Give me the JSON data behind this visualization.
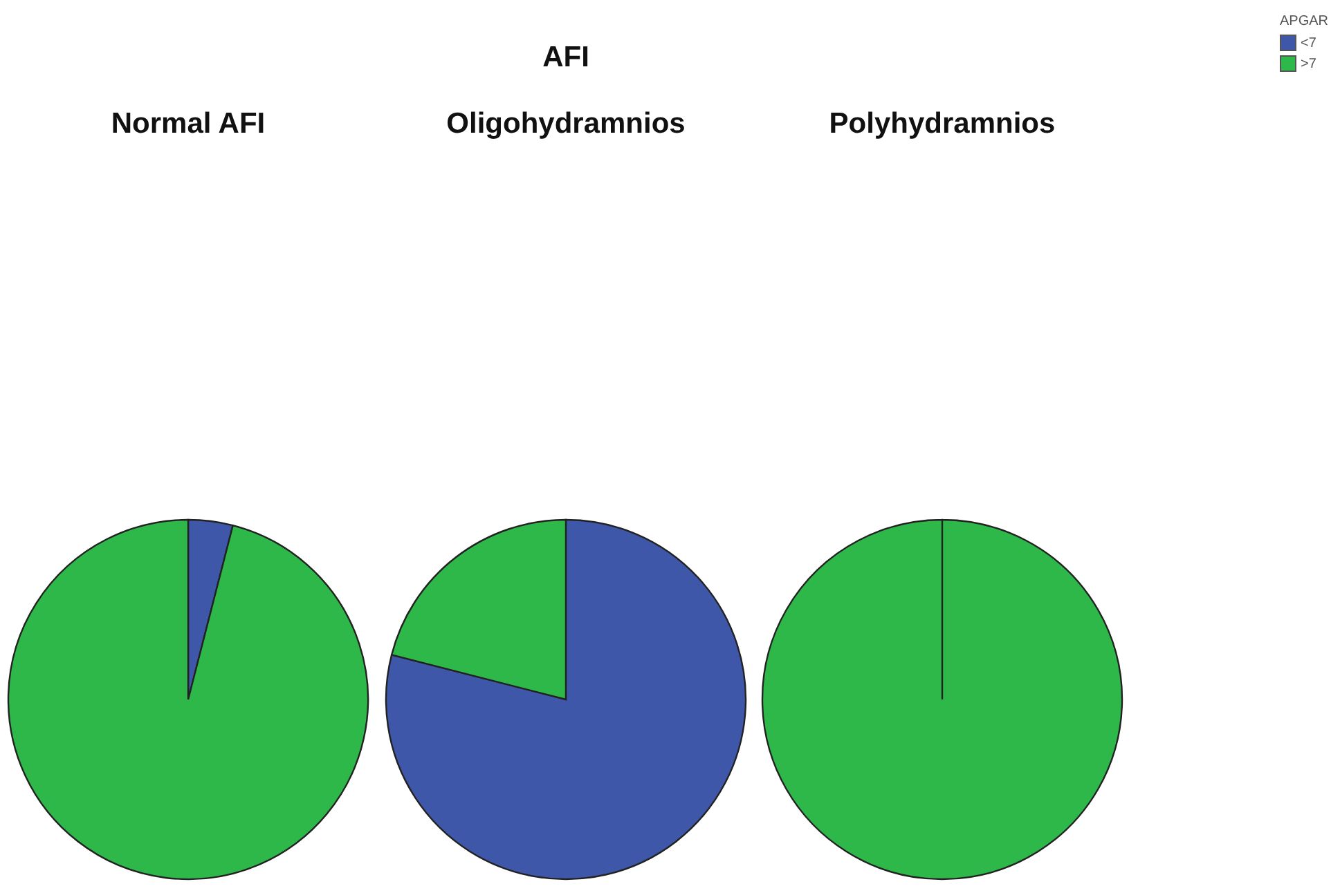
{
  "chart_data": [
    {
      "type": "pie",
      "title": "Normal AFI",
      "categories": [
        null,
        null
      ],
      "values": [
        4,
        96
      ],
      "colors": [
        "#3f57a8",
        "#2fb84a"
      ]
    },
    {
      "type": "pie",
      "title": "Oligohydramnios",
      "annotations": [
        "AFI"
      ],
      "categories": [
        null,
        null
      ],
      "values": [
        79,
        21
      ],
      "colors": [
        "#3f57a8",
        "#2fb84a"
      ]
    },
    {
      "type": "pie",
      "title": "Polyhydramnios",
      "categories": [
        "<7",
        ">7"
      ],
      "values": [
        0,
        100
      ],
      "colors": [
        "#3f57a8",
        "#2fb84a"
      ],
      "legend": "top right",
      "legend_title": "APGAR"
    }
  ]
}
